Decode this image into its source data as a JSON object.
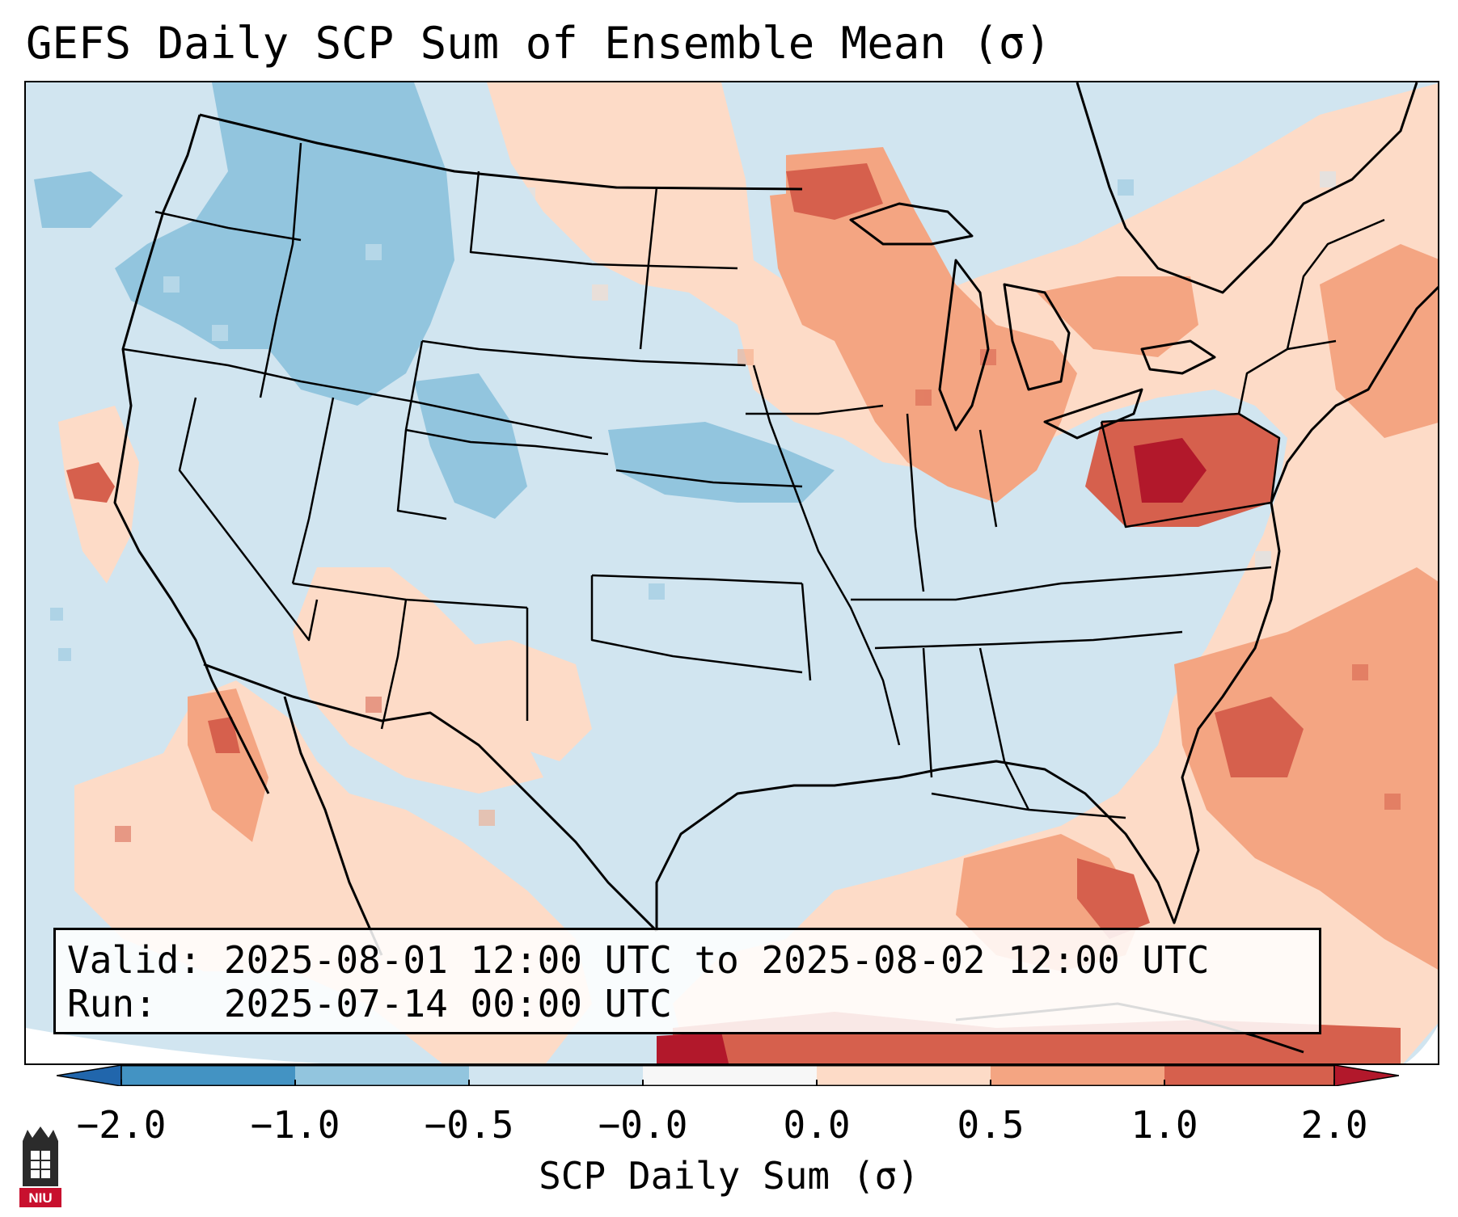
{
  "title": "GEFS Daily SCP Sum of Ensemble Mean (σ)",
  "info_box": {
    "valid_label": "Valid:",
    "valid_value": "2025-08-01 12:00 UTC to 2025-08-02 12:00 UTC",
    "run_label": "Run:",
    "run_value": "2025-07-14 00:00 UTC"
  },
  "colorbar": {
    "label": "SCP Daily Sum (σ)",
    "ticks": [
      "−2.0",
      "−1.0",
      "−0.5",
      "−0.0",
      "0.0",
      "0.5",
      "1.0",
      "2.0"
    ],
    "bins": [
      {
        "range": "<-2.0",
        "color": "#2166ac"
      },
      {
        "range": "-2.0 to -1.0",
        "color": "#4393c3"
      },
      {
        "range": "-1.0 to -0.5",
        "color": "#92c5de"
      },
      {
        "range": "-0.5 to -0.0",
        "color": "#d1e5f0"
      },
      {
        "range": "-0.0 to 0.0",
        "color": "#f7f7f7"
      },
      {
        "range": "0.0 to 0.5",
        "color": "#fddbc7"
      },
      {
        "range": "0.5 to 1.0",
        "color": "#f4a582"
      },
      {
        "range": "1.0 to 2.0",
        "color": "#d6604d"
      },
      {
        "range": ">2.0",
        "color": "#b2182b"
      }
    ]
  },
  "map": {
    "region": "Contiguous United States",
    "background_color": "#d1e5f0",
    "anomaly_regions": [
      {
        "name": "Upper Midwest / Great Lakes",
        "level": "0.5 to 1.0"
      },
      {
        "name": "Pennsylvania",
        "level": "1.0 to 2.0"
      },
      {
        "name": "Northern Rockies",
        "level": "-1.0 to -0.5"
      },
      {
        "name": "Western Atlantic",
        "level": "0.5 to 1.0"
      },
      {
        "name": "Gulf of Mexico / Florida",
        "level": "0.5 to 1.0"
      },
      {
        "name": "Southwest / Mexico",
        "level": "0.0 to 0.5"
      }
    ]
  },
  "logo": {
    "text": "NIU"
  }
}
